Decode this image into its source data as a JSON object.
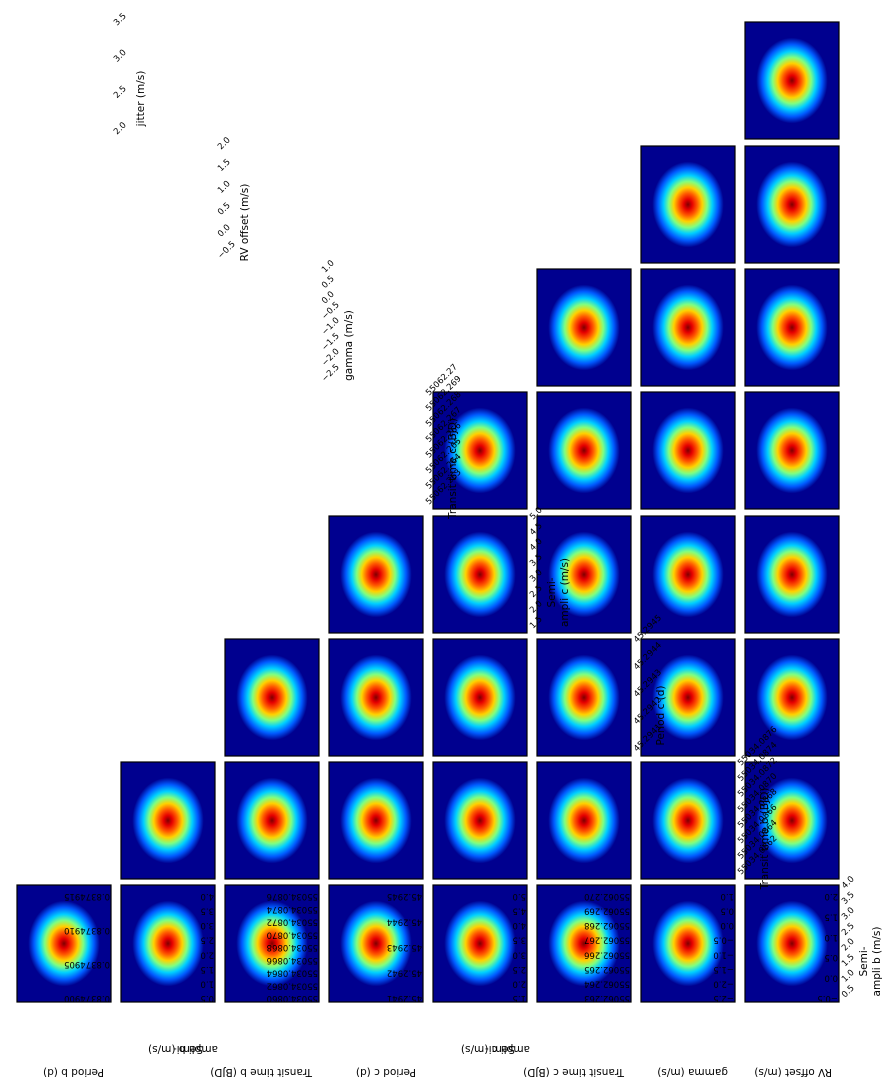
{
  "chart_data": {
    "type": "heatmap",
    "layout": "lower-triangular corner plot of pairwise posterior densities",
    "colormap": "jet",
    "parameters": [
      {
        "label": "Period b (d)",
        "ticks": [
          "0.8374900",
          "0.8374905",
          "0.8374910",
          "0.8374915"
        ]
      },
      {
        "label": "Semi-\nampli b (m/s)",
        "ticks": [
          "0.5",
          "1.0",
          "1.5",
          "2.0",
          "2.5",
          "3.0",
          "3.5",
          "4.0"
        ]
      },
      {
        "label": "Transit time b (BJD)",
        "ticks": [
          "55034.0860",
          "55034.0862",
          "55034.0864",
          "55034.0866",
          "55034.0868",
          "55034.0870",
          "55034.0872",
          "55034.0874",
          "55034.0876"
        ]
      },
      {
        "label": "Period c (d)",
        "ticks": [
          "45.2941",
          "45.2942",
          "45.2943",
          "45.2944",
          "45.2945"
        ]
      },
      {
        "label": "Semi-\nampli c (m/s)",
        "ticks": [
          "1.5",
          "2.0",
          "2.5",
          "3.0",
          "3.5",
          "4.0",
          "4.5",
          "5.0"
        ]
      },
      {
        "label": "Transit time c (BJD)",
        "ticks": [
          "55062.263",
          "55062.264",
          "55062.265",
          "55062.266",
          "55062.267",
          "55062.268",
          "55062.269",
          "55062.270"
        ]
      },
      {
        "label": "gamma (m/s)",
        "ticks": [
          "−2.5",
          "−2.0",
          "−1.5",
          "−1.0",
          "−0.5",
          "0.0",
          "0.5",
          "1.0"
        ]
      },
      {
        "label": "RV offset (m/s)",
        "ticks": [
          "−0.5",
          "0.0",
          "0.5",
          "1.0",
          "1.5",
          "2.0"
        ]
      },
      {
        "label": "jitter (m/s)",
        "ticks": [
          "2.0",
          "2.5",
          "3.0",
          "3.5"
        ]
      }
    ],
    "right_tick_labels": [
      [
        "0.5",
        "1.0",
        "1.5",
        "2.0",
        "2.5",
        "3.0",
        "3.5",
        "4.0"
      ],
      [
        "55034.0862",
        "55034.0864",
        "55034.0866",
        "55034.0868",
        "55034.0870",
        "55034.0872",
        "55034.0874",
        "55034.0876"
      ],
      [
        "45.2941",
        "45.2942",
        "45.2943",
        "45.2944",
        "45.2945"
      ],
      [
        "1.5",
        "2.0",
        "2.5",
        "3.0",
        "3.5",
        "4.0",
        "4.5",
        "5.0"
      ],
      [
        "55062.263",
        "55062.264",
        "55062.265",
        "55062.266",
        "55062.267",
        "55062.268",
        "55062.269",
        "55062.27"
      ],
      [
        "−2.5",
        "−2.0",
        "−1.5",
        "−1.0",
        "−0.5",
        "0.0",
        "0.5",
        "1.0"
      ],
      [
        "−0.5",
        "0.0",
        "0.5",
        "1.0",
        "1.5",
        "2.0"
      ],
      [
        "2.0",
        "2.5",
        "3.0",
        "3.5"
      ]
    ],
    "peak_elongation": 1.2,
    "tilted_panels": [
      {
        "row": 4,
        "col": 1,
        "angle": 18
      }
    ],
    "grid": false,
    "legend": "none"
  }
}
